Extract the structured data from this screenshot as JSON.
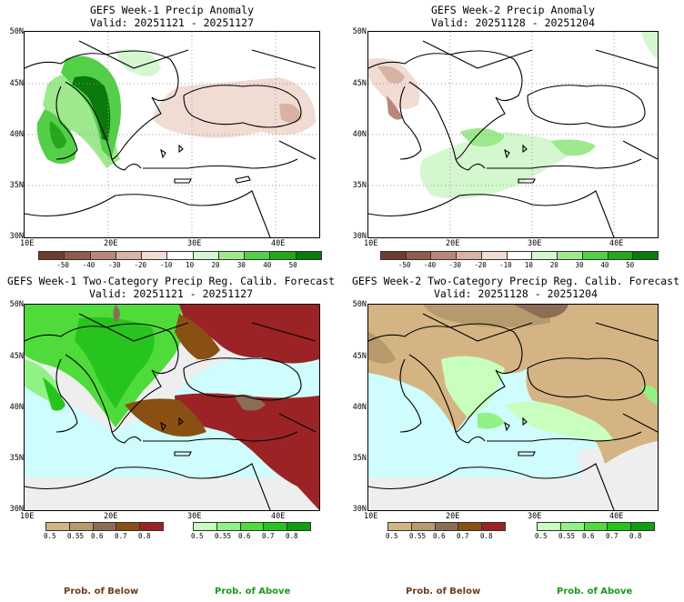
{
  "panels": {
    "p1": {
      "title": "GEFS Week-1 Precip Anomaly",
      "valid": "Valid: 20251121 - 20251127"
    },
    "p2": {
      "title": "GEFS Week-2 Precip Anomaly",
      "valid": "Valid: 20251128 - 20251204"
    },
    "p3": {
      "title": "GEFS Week-1 Two-Category Precip Reg. Calib. Forecast",
      "valid": "Valid: 20251121 - 20251127"
    },
    "p4": {
      "title": "GEFS Week-2 Two-Category Precip Reg. Calib. Forecast",
      "valid": "Valid: 20251128 - 20251204"
    }
  },
  "axes": {
    "lat_labels": [
      "50N",
      "45N",
      "40N",
      "35N",
      "30N"
    ],
    "lon_labels": [
      "10E",
      "20E",
      "30E",
      "40E"
    ]
  },
  "anomaly_colorbar": {
    "ticks": [
      "-50",
      "-40",
      "-30",
      "-20",
      "-10",
      "10",
      "20",
      "30",
      "40",
      "50"
    ],
    "colors": [
      "#6b3d2e",
      "#8f5b4a",
      "#b8877a",
      "#d8b2a5",
      "#f0dcd3",
      "#ffffff",
      "#d4f7cf",
      "#9ee98e",
      "#54cf48",
      "#22a81a",
      "#0a7a0a"
    ]
  },
  "prob_colorbar": {
    "below_ticks": [
      "0.5",
      "0.55",
      "0.6",
      "0.7",
      "0.8"
    ],
    "above_ticks": [
      "0.5",
      "0.55",
      "0.6",
      "0.7",
      "0.8"
    ],
    "below_colors": [
      "#d4b483",
      "#b69a6e",
      "#8c6d55",
      "#8a4f12",
      "#9b2326"
    ],
    "above_colors": [
      "#c8ffbf",
      "#90f285",
      "#4fdc3a",
      "#28c41e",
      "#0f9f0f"
    ]
  },
  "legend": {
    "below_label": "Prob. of Below",
    "above_label": "Prob. of Above",
    "below_color": "#6e3b1e",
    "above_color": "#1a9a1a"
  },
  "colors": {
    "sea_prob": "#cffcfc",
    "land_normal": "#eeeeee"
  }
}
